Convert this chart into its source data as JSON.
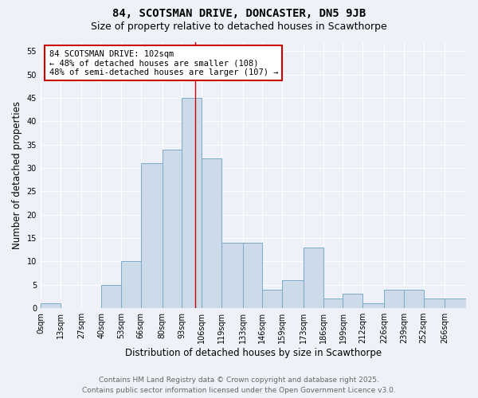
{
  "title_line1": "84, SCOTSMAN DRIVE, DONCASTER, DN5 9JB",
  "title_line2": "Size of property relative to detached houses in Scawthorpe",
  "xlabel": "Distribution of detached houses by size in Scawthorpe",
  "ylabel": "Number of detached properties",
  "bin_labels": [
    "0sqm",
    "13sqm",
    "27sqm",
    "40sqm",
    "53sqm",
    "66sqm",
    "80sqm",
    "93sqm",
    "106sqm",
    "119sqm",
    "133sqm",
    "146sqm",
    "159sqm",
    "173sqm",
    "186sqm",
    "199sqm",
    "212sqm",
    "226sqm",
    "239sqm",
    "252sqm",
    "266sqm"
  ],
  "bin_edges": [
    0,
    13,
    27,
    40,
    53,
    66,
    80,
    93,
    106,
    119,
    133,
    146,
    159,
    173,
    186,
    199,
    212,
    226,
    239,
    252,
    266,
    280
  ],
  "values": [
    1,
    0,
    0,
    5,
    10,
    31,
    34,
    45,
    32,
    14,
    14,
    4,
    6,
    13,
    2,
    3,
    1,
    4,
    4,
    2,
    2
  ],
  "bar_color": "#ccdaea",
  "bar_edge_color": "#7aaac8",
  "red_line_x": 102,
  "annotation_line1": "84 SCOTSMAN DRIVE: 102sqm",
  "annotation_line2": "← 48% of detached houses are smaller (108)",
  "annotation_line3": "48% of semi-detached houses are larger (107) →",
  "annotation_box_color": "#ffffff",
  "annotation_box_edge": "#cc0000",
  "footer_line1": "Contains HM Land Registry data © Crown copyright and database right 2025.",
  "footer_line2": "Contains public sector information licensed under the Open Government Licence v3.0.",
  "ylim": [
    0,
    57
  ],
  "yticks": [
    0,
    5,
    10,
    15,
    20,
    25,
    30,
    35,
    40,
    45,
    50,
    55
  ],
  "bg_color": "#eef2f8",
  "grid_color": "#ffffff",
  "title_fontsize": 10,
  "subtitle_fontsize": 9,
  "axis_label_fontsize": 8.5,
  "tick_fontsize": 7,
  "annotation_fontsize": 7.5,
  "footer_fontsize": 6.5
}
